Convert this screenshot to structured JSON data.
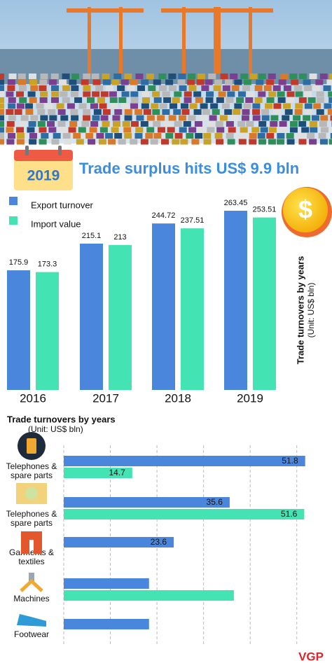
{
  "header": {
    "badge": "2019",
    "title": "Trade surplus hits US$ 9.9 bln"
  },
  "chart_data": [
    {
      "type": "bar",
      "axis_label": "Trade turnovers by years",
      "axis_unit": "(Unit: US$ bln)",
      "categories": [
        "2016",
        "2017",
        "2018",
        "2019"
      ],
      "series": [
        {
          "name": "Export turnover",
          "color": "#4a87dc",
          "values": [
            175.9,
            215.1,
            244.72,
            263.45
          ]
        },
        {
          "name": "Import value",
          "color": "#43e3b4",
          "values": [
            173.3,
            213,
            237.51,
            253.51
          ]
        }
      ]
    },
    {
      "type": "barh",
      "title": "Trade turnovers by years",
      "subtitle": "(Unit: US$ bln)",
      "categories": [
        [
          "Telephones &",
          "spare parts"
        ],
        [
          "Telephones &",
          "spare parts"
        ],
        [
          "Garments &",
          "textiles"
        ],
        [
          "Machines"
        ],
        [
          "Footwear"
        ]
      ],
      "xlim": [
        0,
        55
      ],
      "xticks": [
        0,
        10,
        20,
        30,
        40,
        50
      ],
      "grid": true,
      "series": [
        {
          "color": "#4a87dc",
          "values": [
            51.8,
            35.6,
            23.6,
            18.3,
            18.3
          ],
          "value_labels": [
            "51.8",
            "35.6",
            "23.6",
            null,
            null
          ]
        },
        {
          "color": "#43e3b4",
          "values": [
            14.7,
            51.6,
            null,
            36.5,
            null
          ],
          "value_labels": [
            "14.7",
            "51.6",
            null,
            null,
            null
          ]
        }
      ]
    }
  ],
  "footer": {
    "logo": "VGP"
  }
}
